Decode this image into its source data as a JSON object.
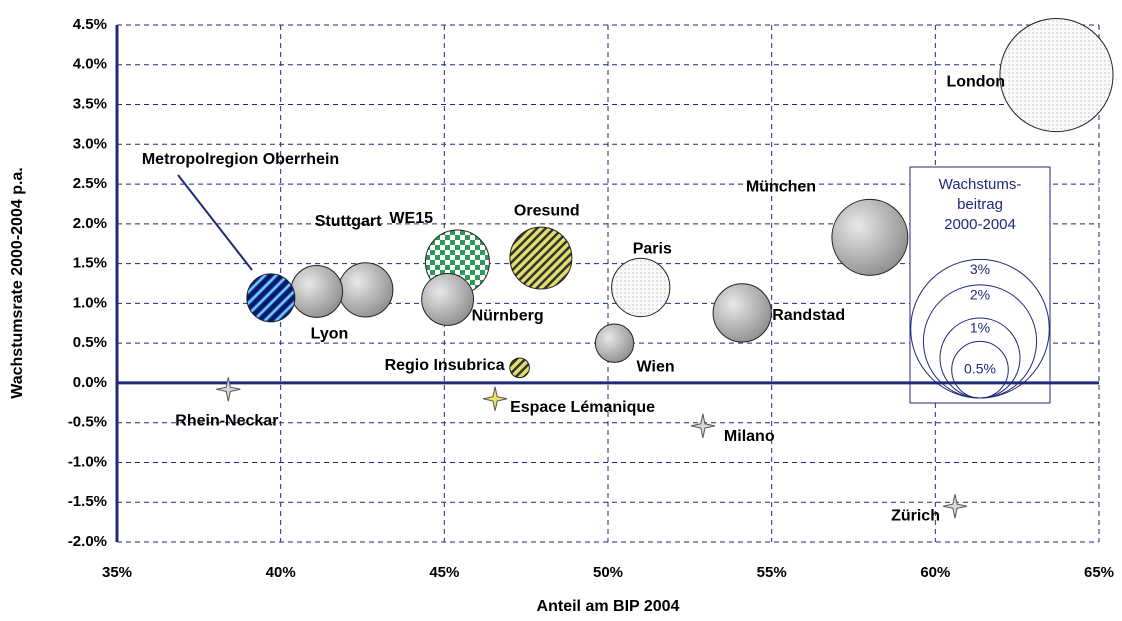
{
  "chart_data": {
    "type": "bubble",
    "x_label": "Anteil am BIP 2004",
    "y_label": "Wachstumsrate 2000-2004 p.a.",
    "xlim": [
      35,
      65
    ],
    "ylim": [
      -2,
      4.5
    ],
    "xticks": [
      {
        "value": 35,
        "label": "35%"
      },
      {
        "value": 40,
        "label": "40%"
      },
      {
        "value": 45,
        "label": "45%"
      },
      {
        "value": 50,
        "label": "50%"
      },
      {
        "value": 55,
        "label": "55%"
      },
      {
        "value": 60,
        "label": "60%"
      },
      {
        "value": 65,
        "label": "65%"
      }
    ],
    "yticks": [
      {
        "value": -2,
        "label": "-2.0%"
      },
      {
        "value": -1.5,
        "label": "-1.5%"
      },
      {
        "value": -1,
        "label": "-1.0%"
      },
      {
        "value": -0.5,
        "label": "-0.5%"
      },
      {
        "value": 0,
        "label": "0.0%"
      },
      {
        "value": 0.5,
        "label": "0.5%"
      },
      {
        "value": 1,
        "label": "1.0%"
      },
      {
        "value": 1.5,
        "label": "1.5%"
      },
      {
        "value": 2,
        "label": "2.0%"
      },
      {
        "value": 2.5,
        "label": "2.5%"
      },
      {
        "value": 3,
        "label": "3.0%"
      },
      {
        "value": 3.5,
        "label": "3.5%"
      },
      {
        "value": 4,
        "label": "4.0%"
      },
      {
        "value": 4.5,
        "label": "4.5%"
      }
    ],
    "grid": true,
    "points": [
      {
        "label": "London",
        "x": 63.7,
        "y": 3.87,
        "size": 2.0,
        "style": "dots"
      },
      {
        "label": "München",
        "x": 58.0,
        "y": 1.83,
        "size": 0.9,
        "style": "gray"
      },
      {
        "label": "Randstad",
        "x": 54.1,
        "y": 0.88,
        "size": 0.53,
        "style": "gray"
      },
      {
        "label": "Paris",
        "x": 51.0,
        "y": 1.2,
        "size": 0.53,
        "style": "dots"
      },
      {
        "label": "Wien",
        "x": 50.2,
        "y": 0.5,
        "size": 0.23,
        "style": "gray"
      },
      {
        "label": "Oresund",
        "x": 47.95,
        "y": 1.57,
        "size": 0.6,
        "style": "stripes-yellow"
      },
      {
        "label": "WE15",
        "x": 45.4,
        "y": 1.52,
        "size": 0.64,
        "style": "checker-green"
      },
      {
        "label": "Nürnberg",
        "x": 45.1,
        "y": 1.05,
        "size": 0.42,
        "style": "gray"
      },
      {
        "label": "Stuttgart",
        "x": 42.6,
        "y": 1.17,
        "size": 0.46,
        "style": "gray"
      },
      {
        "label": "Lyon",
        "x": 41.1,
        "y": 1.15,
        "size": 0.42,
        "style": "gray"
      },
      {
        "label": "Metropolregion Oberrhein",
        "x": 39.7,
        "y": 1.07,
        "size": 0.36,
        "style": "stripes-blue"
      },
      {
        "label": "Regio Insubrica",
        "x": 47.3,
        "y": 0.19,
        "size": 0.06,
        "style": "stripes-yellow"
      },
      {
        "label": "Rhein-Neckar",
        "x": 38.4,
        "y": -0.08,
        "size": null,
        "style": "star-gray"
      },
      {
        "label": "Espace Lémanique",
        "x": 46.55,
        "y": -0.2,
        "size": null,
        "style": "star-yellow"
      },
      {
        "label": "Milano",
        "x": 52.9,
        "y": -0.54,
        "size": null,
        "style": "star-gray"
      },
      {
        "label": "Zürich",
        "x": 60.6,
        "y": -1.55,
        "size": null,
        "style": "star-gray"
      }
    ],
    "size_legend": {
      "title": [
        "Wachstums-",
        "beitrag",
        "2000-2004"
      ],
      "sizes": [
        {
          "value": 3,
          "label": "3%"
        },
        {
          "value": 2,
          "label": "2%"
        },
        {
          "value": 1,
          "label": "1%"
        },
        {
          "value": 0.5,
          "label": "0.5%"
        }
      ]
    }
  }
}
